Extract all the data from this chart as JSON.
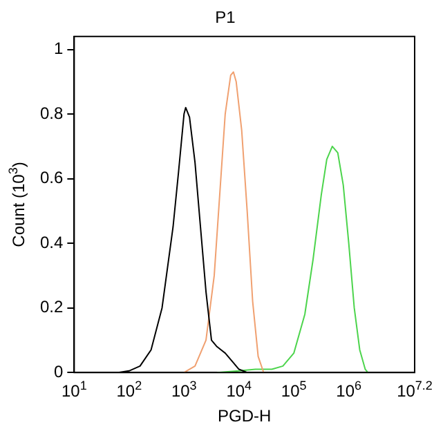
{
  "chart_data": {
    "type": "line",
    "title": "P1",
    "xlabel": "PGD-H",
    "ylabel": "Count (10$^{3}$)",
    "log": "x",
    "xlim": [
      10,
      15848932
    ],
    "ylim": [
      0,
      1.04
    ],
    "xticks": [
      {
        "value": 10,
        "label": "10$^{1}$"
      },
      {
        "value": 100,
        "label": "10$^{2}$"
      },
      {
        "value": 1000,
        "label": "10$^{3}$"
      },
      {
        "value": 10000,
        "label": "10$^{4}$"
      },
      {
        "value": 100000,
        "label": "10$^{5}$"
      },
      {
        "value": 1000000,
        "label": "10$^{6}$"
      },
      {
        "value": 15848932,
        "label": "10$^{7.2}$"
      }
    ],
    "yticks": [
      0,
      0.2,
      0.4,
      0.6,
      0.8,
      1
    ],
    "grid": false,
    "legend": false,
    "marker": "none",
    "line_style": "solid",
    "series": [
      {
        "color": "#000000",
        "x": [
          63,
          100,
          158,
          251,
          398,
          631,
          794,
          1000,
          1072,
          1259,
          1585,
          1995,
          2512,
          3162,
          3981,
          5623,
          7943,
          10000,
          14125,
          19953
        ],
        "values": [
          0,
          0.005,
          0.02,
          0.07,
          0.2,
          0.45,
          0.62,
          0.8,
          0.82,
          0.79,
          0.65,
          0.45,
          0.25,
          0.1,
          0.08,
          0.06,
          0.03,
          0.01,
          0,
          0
        ]
      },
      {
        "color": "#f0a070",
        "x": [
          1000,
          1585,
          2512,
          3548,
          4467,
          5623,
          7079,
          7943,
          8913,
          11220,
          14125,
          17783,
          22387,
          28184
        ],
        "values": [
          0,
          0.02,
          0.1,
          0.3,
          0.55,
          0.8,
          0.92,
          0.93,
          0.9,
          0.75,
          0.5,
          0.22,
          0.05,
          0
        ]
      },
      {
        "color": "#4cd44c",
        "x": [
          3981,
          10000,
          19953,
          39811,
          63096,
          100000,
          158489,
          223872,
          316228,
          398107,
          501187,
          630957,
          794328,
          1000000,
          1258925,
          1584893,
          1995262,
          2238721
        ],
        "values": [
          0,
          0.005,
          0.01,
          0.01,
          0.02,
          0.06,
          0.18,
          0.35,
          0.55,
          0.66,
          0.7,
          0.68,
          0.58,
          0.4,
          0.2,
          0.07,
          0.01,
          0
        ]
      }
    ]
  }
}
